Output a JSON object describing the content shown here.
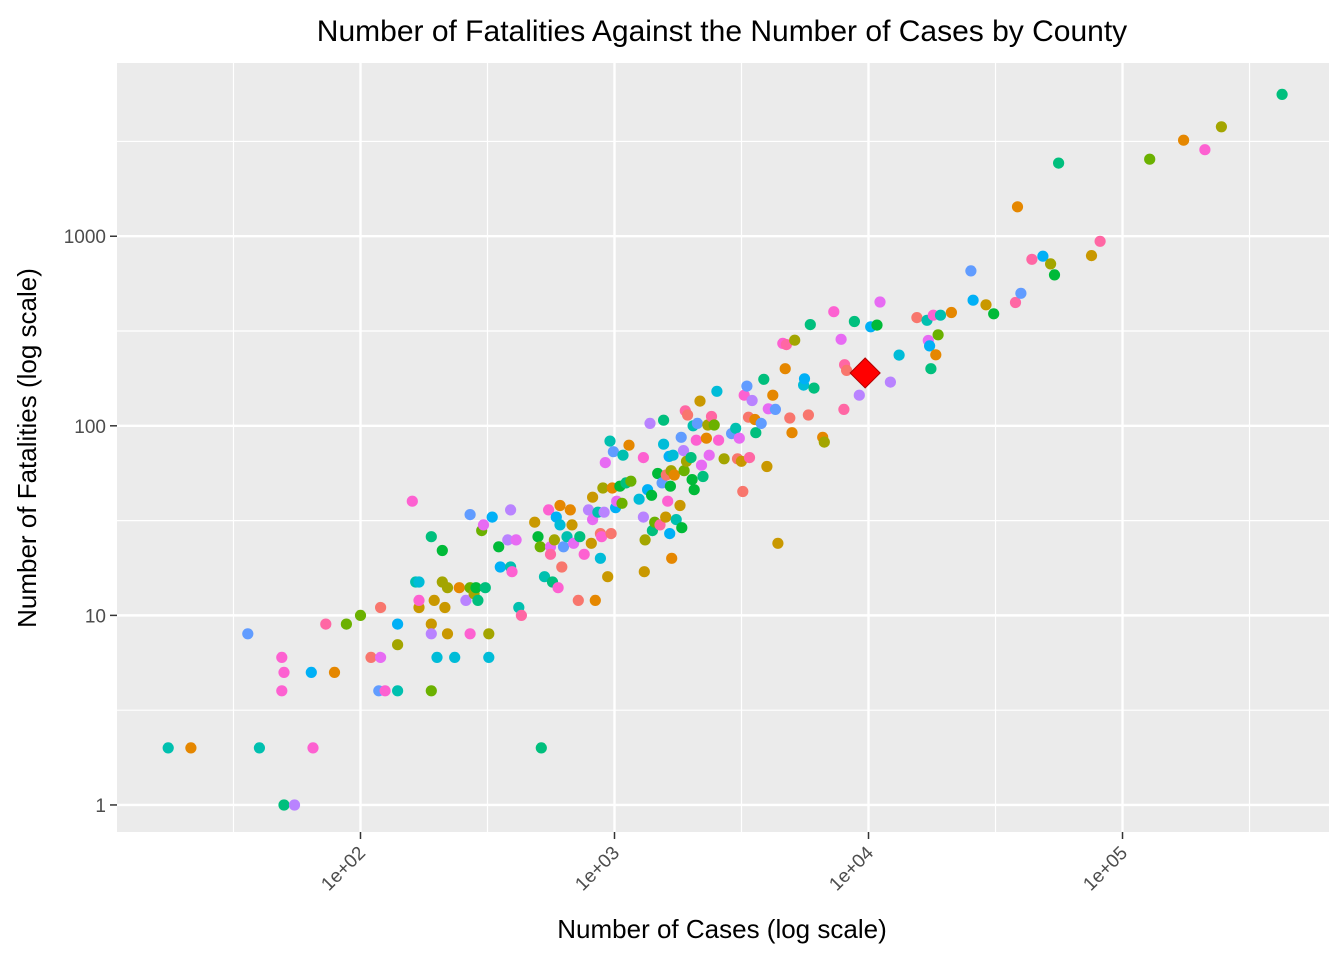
{
  "chart_data": {
    "type": "scatter",
    "title": "Number of Fatalities Against the Number of Cases by County",
    "xlabel": "Number of Cases (log scale)",
    "ylabel": "Number of Fatalities (log scale)",
    "x_scale": "log10",
    "y_scale": "log10",
    "xlim": [
      11,
      650000
    ],
    "ylim": [
      0.72,
      8200
    ],
    "x_ticks": [
      {
        "value": 100,
        "label": "1e+02"
      },
      {
        "value": 1000,
        "label": "1e+03"
      },
      {
        "value": 10000,
        "label": "1e+04"
      },
      {
        "value": 100000,
        "label": "1e+05"
      }
    ],
    "y_ticks": [
      {
        "value": 1,
        "label": "1"
      },
      {
        "value": 10,
        "label": "10"
      },
      {
        "value": 100,
        "label": "100"
      },
      {
        "value": 1000,
        "label": "1000"
      }
    ],
    "grid": true,
    "legend": "none",
    "background": "#ebebeb",
    "gridline_color": "#ffffff",
    "palette": [
      "#F8766D",
      "#E58700",
      "#C99800",
      "#A3A500",
      "#6BB100",
      "#00BA38",
      "#00BF7D",
      "#00C0AF",
      "#00BCD8",
      "#00B0F6",
      "#619CFF",
      "#B983FF",
      "#E76BF3",
      "#FD61D1",
      "#FF67A4"
    ],
    "highlight": {
      "x": 9700,
      "y": 190,
      "shape": "diamond",
      "color": "#FF0000"
    },
    "points": [
      [
        17.5,
        2,
        7
      ],
      [
        21.5,
        2,
        1
      ],
      [
        36,
        8,
        10
      ],
      [
        40,
        2,
        7
      ],
      [
        49,
        6,
        13
      ],
      [
        49,
        4,
        13
      ],
      [
        50,
        5,
        13
      ],
      [
        50,
        1,
        6
      ],
      [
        55,
        1,
        11
      ],
      [
        64,
        5,
        9
      ],
      [
        65,
        2,
        13
      ],
      [
        73,
        9,
        14
      ],
      [
        79,
        5,
        1
      ],
      [
        88,
        9,
        4
      ],
      [
        100,
        10,
        4
      ],
      [
        110,
        6,
        0
      ],
      [
        118,
        4,
        10
      ],
      [
        120,
        6,
        12
      ],
      [
        120,
        11,
        0
      ],
      [
        125,
        4,
        13
      ],
      [
        140,
        4,
        7
      ],
      [
        140,
        7,
        3
      ],
      [
        140,
        9,
        9
      ],
      [
        160,
        40,
        13
      ],
      [
        165,
        15,
        7
      ],
      [
        170,
        11,
        2
      ],
      [
        170,
        12,
        13
      ],
      [
        170,
        15,
        8
      ],
      [
        190,
        26,
        6
      ],
      [
        190,
        9,
        2
      ],
      [
        190,
        8,
        11
      ],
      [
        190,
        4,
        4
      ],
      [
        195,
        12,
        2
      ],
      [
        200,
        6,
        8
      ],
      [
        210,
        15,
        3
      ],
      [
        210,
        22,
        5
      ],
      [
        215,
        11,
        2
      ],
      [
        220,
        14,
        3
      ],
      [
        220,
        8,
        2
      ],
      [
        235,
        6,
        8
      ],
      [
        245,
        14,
        1
      ],
      [
        260,
        12,
        11
      ],
      [
        270,
        14,
        4
      ],
      [
        270,
        34,
        10
      ],
      [
        270,
        8,
        13
      ],
      [
        280,
        13,
        3
      ],
      [
        285,
        14,
        5
      ],
      [
        290,
        12,
        6
      ],
      [
        300,
        28,
        4
      ],
      [
        305,
        30,
        12
      ],
      [
        310,
        14,
        6
      ],
      [
        320,
        6,
        8
      ],
      [
        320,
        8,
        3
      ],
      [
        330,
        33,
        9
      ],
      [
        350,
        23,
        5
      ],
      [
        355,
        18,
        9
      ],
      [
        380,
        25,
        11
      ],
      [
        390,
        36,
        11
      ],
      [
        390,
        18,
        7
      ],
      [
        395,
        17,
        13
      ],
      [
        410,
        25,
        12
      ],
      [
        420,
        11,
        7
      ],
      [
        430,
        10,
        14
      ],
      [
        485,
        31,
        2
      ],
      [
        500,
        26,
        5
      ],
      [
        510,
        23,
        4
      ],
      [
        515,
        2,
        6
      ],
      [
        530,
        16,
        7
      ],
      [
        550,
        36,
        13
      ],
      [
        560,
        23,
        12
      ],
      [
        560,
        21,
        14
      ],
      [
        570,
        15,
        6
      ],
      [
        580,
        25,
        3
      ],
      [
        590,
        33,
        9
      ],
      [
        600,
        14,
        13
      ],
      [
        610,
        38,
        1
      ],
      [
        610,
        30,
        8
      ],
      [
        620,
        18,
        0
      ],
      [
        630,
        23,
        10
      ],
      [
        650,
        26,
        7
      ],
      [
        670,
        36,
        1
      ],
      [
        680,
        30,
        2
      ],
      [
        690,
        24,
        12
      ],
      [
        720,
        12,
        0
      ],
      [
        730,
        26,
        6
      ],
      [
        760,
        21,
        13
      ],
      [
        790,
        36,
        11
      ],
      [
        810,
        24,
        2
      ],
      [
        820,
        32,
        12
      ],
      [
        820,
        42,
        2
      ],
      [
        840,
        12,
        1
      ],
      [
        860,
        35,
        7
      ],
      [
        880,
        27,
        0
      ],
      [
        880,
        20,
        8
      ],
      [
        890,
        26,
        13
      ],
      [
        900,
        47,
        3
      ],
      [
        910,
        35,
        11
      ],
      [
        920,
        64,
        12
      ],
      [
        940,
        16,
        2
      ],
      [
        960,
        83,
        7
      ],
      [
        970,
        27,
        0
      ],
      [
        980,
        47,
        1
      ],
      [
        990,
        73,
        10
      ],
      [
        1010,
        37,
        9
      ],
      [
        1020,
        40,
        12
      ],
      [
        1050,
        48,
        5
      ],
      [
        1070,
        39,
        4
      ],
      [
        1080,
        70,
        7
      ],
      [
        1110,
        50,
        6
      ],
      [
        1140,
        79,
        1
      ],
      [
        1160,
        51,
        4
      ],
      [
        1250,
        41,
        8
      ],
      [
        1300,
        68,
        13
      ],
      [
        1300,
        33,
        11
      ],
      [
        1310,
        17,
        2
      ],
      [
        1320,
        25,
        3
      ],
      [
        1350,
        46,
        9
      ],
      [
        1380,
        103,
        11
      ],
      [
        1400,
        43,
        5
      ],
      [
        1410,
        28,
        6
      ],
      [
        1440,
        31,
        4
      ],
      [
        1480,
        56,
        5
      ],
      [
        1510,
        30,
        14
      ],
      [
        1540,
        50,
        10
      ],
      [
        1560,
        80,
        8
      ],
      [
        1560,
        107,
        6
      ],
      [
        1590,
        33,
        2
      ],
      [
        1600,
        55,
        0
      ],
      [
        1620,
        40,
        13
      ],
      [
        1640,
        69,
        9
      ],
      [
        1650,
        27,
        9
      ],
      [
        1660,
        48,
        5
      ],
      [
        1670,
        58,
        3
      ],
      [
        1680,
        20,
        1
      ],
      [
        1700,
        70,
        8
      ],
      [
        1720,
        55,
        1
      ],
      [
        1750,
        32,
        7
      ],
      [
        1810,
        38,
        2
      ],
      [
        1830,
        87,
        10
      ],
      [
        1840,
        29,
        5
      ],
      [
        1870,
        74,
        11
      ],
      [
        1880,
        58,
        4
      ],
      [
        1900,
        120,
        14
      ],
      [
        1920,
        65,
        3
      ],
      [
        1940,
        114,
        0
      ],
      [
        2000,
        68,
        6
      ],
      [
        2020,
        52,
        5
      ],
      [
        2040,
        100,
        7
      ],
      [
        2060,
        46,
        5
      ],
      [
        2100,
        84,
        13
      ],
      [
        2120,
        103,
        10
      ],
      [
        2170,
        135,
        2
      ],
      [
        2200,
        62,
        12
      ],
      [
        2230,
        54,
        6
      ],
      [
        2300,
        86,
        1
      ],
      [
        2330,
        101,
        3
      ],
      [
        2360,
        70,
        12
      ],
      [
        2410,
        112,
        14
      ],
      [
        2470,
        101,
        4
      ],
      [
        2530,
        152,
        8
      ],
      [
        2570,
        84,
        13
      ],
      [
        2700,
        67,
        3
      ],
      [
        2890,
        91,
        10
      ],
      [
        3000,
        97,
        7
      ],
      [
        3050,
        67,
        0
      ],
      [
        3100,
        86,
        12
      ],
      [
        3160,
        65,
        2
      ],
      [
        3200,
        45,
        0
      ],
      [
        3240,
        145,
        13
      ],
      [
        3320,
        162,
        10
      ],
      [
        3370,
        111,
        0
      ],
      [
        3400,
        68,
        14
      ],
      [
        3480,
        136,
        11
      ],
      [
        3570,
        108,
        1
      ],
      [
        3600,
        92,
        6
      ],
      [
        3780,
        103,
        10
      ],
      [
        3870,
        176,
        6
      ],
      [
        3980,
        61,
        2
      ],
      [
        4030,
        123,
        12
      ],
      [
        4200,
        145,
        1
      ],
      [
        4300,
        122,
        10
      ],
      [
        4400,
        24,
        2
      ],
      [
        4600,
        272,
        13
      ],
      [
        4700,
        200,
        1
      ],
      [
        4750,
        268,
        14
      ],
      [
        4900,
        110,
        0
      ],
      [
        5000,
        92,
        1
      ],
      [
        5120,
        283,
        3
      ],
      [
        5550,
        164,
        8
      ],
      [
        5600,
        177,
        9
      ],
      [
        5800,
        114,
        0
      ],
      [
        5900,
        342,
        6
      ],
      [
        6100,
        158,
        6
      ],
      [
        6600,
        87,
        1
      ],
      [
        6700,
        82,
        3
      ],
      [
        7300,
        400,
        13
      ],
      [
        7800,
        286,
        12
      ],
      [
        8000,
        122,
        14
      ],
      [
        8050,
        210,
        14
      ],
      [
        8200,
        196,
        0
      ],
      [
        8800,
        355,
        6
      ],
      [
        9200,
        145,
        11
      ],
      [
        10200,
        333,
        9
      ],
      [
        10800,
        340,
        5
      ],
      [
        11100,
        450,
        12
      ],
      [
        12200,
        170,
        11
      ],
      [
        13200,
        236,
        8
      ],
      [
        15500,
        372,
        0
      ],
      [
        17000,
        360,
        7
      ],
      [
        17200,
        282,
        12
      ],
      [
        17400,
        264,
        9
      ],
      [
        17600,
        200,
        6
      ],
      [
        18000,
        383,
        13
      ],
      [
        18400,
        237,
        1
      ],
      [
        18800,
        302,
        4
      ],
      [
        19200,
        383,
        7
      ],
      [
        21200,
        396,
        1
      ],
      [
        25300,
        656,
        10
      ],
      [
        25800,
        460,
        9
      ],
      [
        29000,
        435,
        2
      ],
      [
        31100,
        390,
        5
      ],
      [
        37900,
        447,
        14
      ],
      [
        38600,
        1430,
        1
      ],
      [
        39800,
        500,
        10
      ],
      [
        44000,
        756,
        14
      ],
      [
        48600,
        785,
        9
      ],
      [
        52100,
        715,
        3
      ],
      [
        54000,
        625,
        5
      ],
      [
        56000,
        2430,
        6
      ],
      [
        75500,
        790,
        2
      ],
      [
        81600,
        940,
        14
      ],
      [
        128000,
        2550,
        4
      ],
      [
        174000,
        3210,
        1
      ],
      [
        211000,
        2860,
        13
      ],
      [
        245000,
        3780,
        3
      ],
      [
        425000,
        5600,
        6
      ]
    ]
  }
}
